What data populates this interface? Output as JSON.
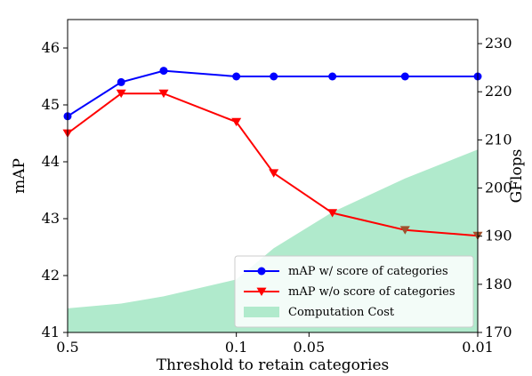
{
  "chart_data": {
    "type": "line",
    "xlabel": "Threshold to retain categories",
    "ylabel_left": "mAP",
    "ylabel_right": "GFlops",
    "x_tick_labels": [
      "0.5",
      "0.1",
      "0.05",
      "0.01"
    ],
    "x_tick_values": [
      0.5,
      0.1,
      0.05,
      0.01
    ],
    "x": [
      0.5,
      0.3,
      0.2,
      0.1,
      0.07,
      0.04,
      0.02,
      0.01
    ],
    "ylim_left": [
      41,
      46.5
    ],
    "yticks_left": [
      41,
      42,
      43,
      44,
      45,
      46
    ],
    "ylim_right": [
      170,
      235
    ],
    "yticks_right": [
      170,
      180,
      190,
      200,
      210,
      220,
      230
    ],
    "legend_position": "lower-right",
    "series": [
      {
        "name": "mAP w/ score of categories",
        "axis": "left",
        "kind": "line",
        "marker": "circle",
        "color": "#0000ff",
        "values": [
          44.8,
          45.4,
          45.6,
          45.5,
          45.5,
          45.5,
          45.5,
          45.5
        ]
      },
      {
        "name": "mAP w/o score of categories",
        "axis": "left",
        "kind": "line",
        "marker": "triangle-down",
        "color": "#ff0000",
        "values": [
          44.5,
          45.2,
          45.2,
          44.7,
          43.8,
          43.1,
          42.8,
          42.7
        ]
      },
      {
        "name": "Computation Cost",
        "axis": "right",
        "kind": "area",
        "color": "#b0eacc",
        "values": [
          175,
          176,
          177.5,
          181,
          187.5,
          195,
          202,
          208
        ]
      }
    ]
  }
}
